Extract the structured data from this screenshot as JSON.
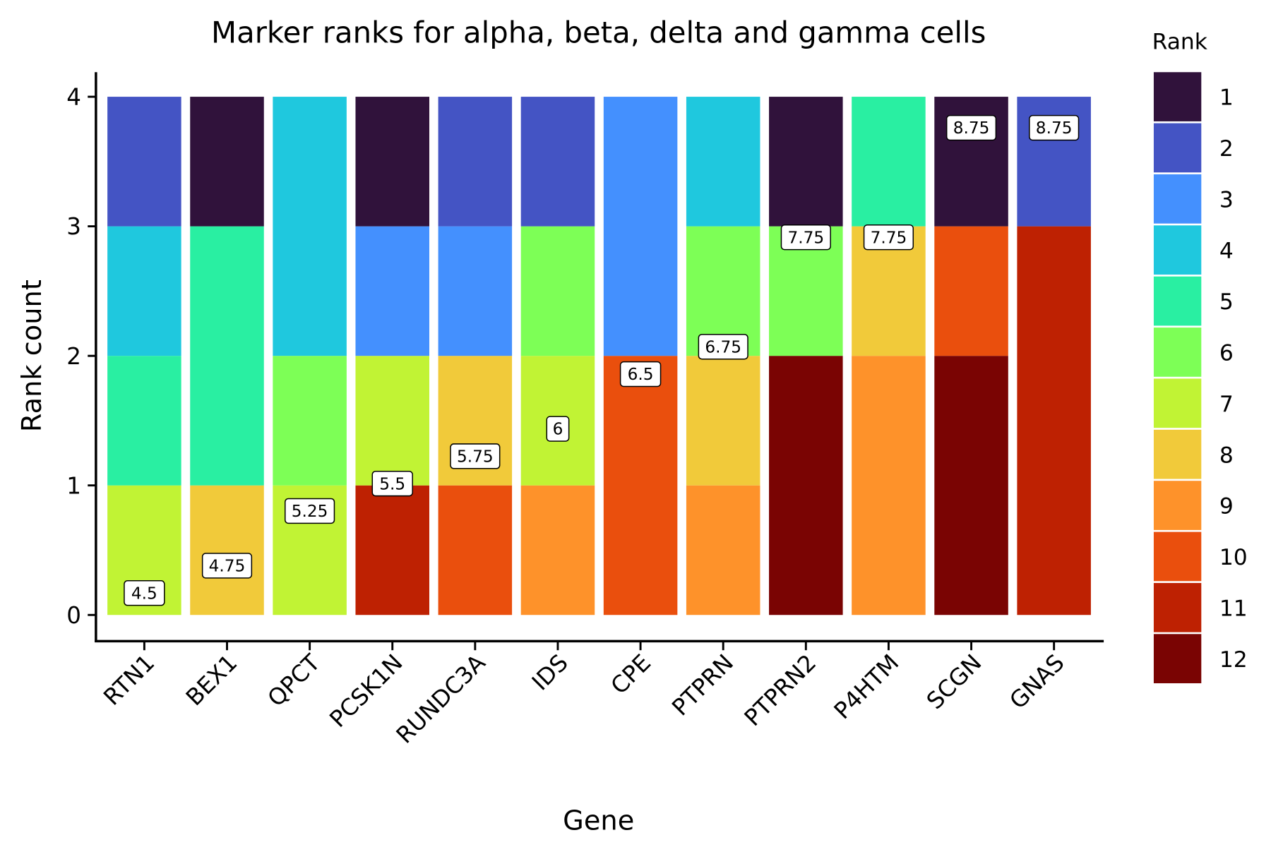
{
  "chart_data": {
    "type": "bar",
    "stacked": true,
    "title": "Marker ranks for alpha, beta, delta and gamma cells",
    "xlabel": "Gene",
    "ylabel": "Rank count",
    "ylim": [
      0,
      4
    ],
    "yticks": [
      "0",
      "1",
      "2",
      "3",
      "4"
    ],
    "grid": false,
    "legend": {
      "title": "Rank",
      "placement": "right",
      "entries": [
        "1",
        "2",
        "3",
        "4",
        "5",
        "6",
        "7",
        "8",
        "9",
        "10",
        "11",
        "12"
      ]
    },
    "colors": {
      "1": "#30123B",
      "2": "#4454C4",
      "3": "#4490FE",
      "4": "#1FC8DE",
      "5": "#29EFA2",
      "6": "#7DFF56",
      "7": "#C1F334",
      "8": "#F1CA3A",
      "9": "#FE922A",
      "10": "#EA4F0D",
      "11": "#BE2102",
      "12": "#7A0403"
    },
    "categories": [
      "RTN1",
      "BEX1",
      "QPCT",
      "PCSK1N",
      "RUNDC3A",
      "IDS",
      "CPE",
      "PTPRN",
      "PTPRN2",
      "P4HTM",
      "SCGN",
      "GNAS"
    ],
    "stacks": [
      [
        {
          "rank": 7,
          "count": 1
        },
        {
          "rank": 5,
          "count": 1
        },
        {
          "rank": 4,
          "count": 1
        },
        {
          "rank": 2,
          "count": 1
        }
      ],
      [
        {
          "rank": 8,
          "count": 1
        },
        {
          "rank": 5,
          "count": 2
        },
        {
          "rank": 1,
          "count": 1
        }
      ],
      [
        {
          "rank": 7,
          "count": 1
        },
        {
          "rank": 6,
          "count": 1
        },
        {
          "rank": 4,
          "count": 2
        }
      ],
      [
        {
          "rank": 11,
          "count": 1
        },
        {
          "rank": 7,
          "count": 1
        },
        {
          "rank": 3,
          "count": 1
        },
        {
          "rank": 1,
          "count": 1
        }
      ],
      [
        {
          "rank": 10,
          "count": 1
        },
        {
          "rank": 8,
          "count": 1
        },
        {
          "rank": 3,
          "count": 1
        },
        {
          "rank": 2,
          "count": 1
        }
      ],
      [
        {
          "rank": 9,
          "count": 1
        },
        {
          "rank": 7,
          "count": 1
        },
        {
          "rank": 6,
          "count": 1
        },
        {
          "rank": 2,
          "count": 1
        }
      ],
      [
        {
          "rank": 10,
          "count": 2
        },
        {
          "rank": 3,
          "count": 2
        }
      ],
      [
        {
          "rank": 9,
          "count": 1
        },
        {
          "rank": 8,
          "count": 1
        },
        {
          "rank": 6,
          "count": 1
        },
        {
          "rank": 4,
          "count": 1
        }
      ],
      [
        {
          "rank": 12,
          "count": 2
        },
        {
          "rank": 6,
          "count": 1
        },
        {
          "rank": 1,
          "count": 1
        }
      ],
      [
        {
          "rank": 9,
          "count": 2
        },
        {
          "rank": 8,
          "count": 1
        },
        {
          "rank": 5,
          "count": 1
        }
      ],
      [
        {
          "rank": 12,
          "count": 2
        },
        {
          "rank": 10,
          "count": 1
        },
        {
          "rank": 1,
          "count": 1
        }
      ],
      [
        {
          "rank": 11,
          "count": 3
        },
        {
          "rank": 2,
          "count": 1
        }
      ]
    ],
    "mean_labels": [
      "4.5",
      "4.75",
      "5.25",
      "5.5",
      "5.75",
      "6",
      "6.5",
      "6.75",
      "7.75",
      "7.75",
      "8.75",
      "8.75"
    ]
  }
}
